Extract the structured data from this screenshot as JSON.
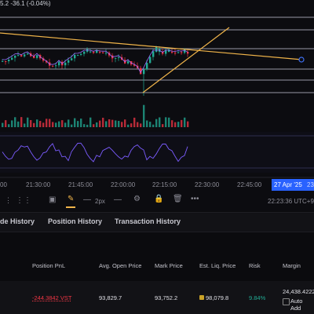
{
  "ticker": {
    "change_text": "5.2  -36.1 (-0.04%)",
    "change_color": "#f23645"
  },
  "time_axis": {
    "labels": [
      "00",
      "21:30:00",
      "21:45:00",
      "22:00:00",
      "22:15:00",
      "22:30:00",
      "22:45:00"
    ],
    "date_badge": "27 Apr '25",
    "date_badge_suffix": "23:0"
  },
  "toolbar": {
    "stroke_width": "2px",
    "clock": "22:23:36 UTC+9",
    "icons": [
      "layers-icon",
      "pencil-icon",
      "line-icon",
      "gear-icon",
      "lock-icon",
      "trash-icon",
      "more-icon"
    ]
  },
  "tabs": [
    {
      "label": "de History"
    },
    {
      "label": "Position History"
    },
    {
      "label": "Transaction History"
    }
  ],
  "table": {
    "headers": [
      "Position PnL",
      "Avg. Open Price",
      "Mark Price",
      "Est. Liq. Price",
      "Risk",
      "Margin"
    ],
    "row": {
      "pnl": "-244.3842 VST",
      "avg_open": "93,829.7",
      "mark": "93,752.2",
      "liq": "98,079.8",
      "risk": "9.84%",
      "margin": "24,438.4222",
      "auto_add_label": "Auto Add"
    },
    "colors": {
      "loss": "#f23645",
      "risk": "#22ab94",
      "liq_icon": "#c9a227"
    }
  },
  "colors": {
    "up": "#22ab94",
    "down": "#f23645",
    "trend": "#f0b44a",
    "oscillator": "#7b5cff",
    "hline": "#c8c8d8"
  }
}
